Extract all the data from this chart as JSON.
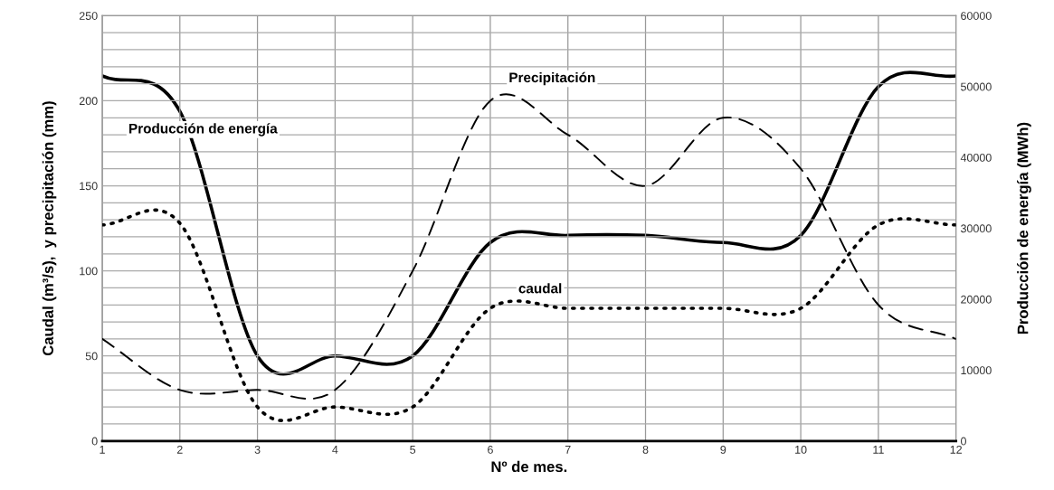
{
  "chart_data": {
    "type": "line",
    "xlabel": "Nº de mes.",
    "ylabel": "Caudal (m³/s),  y precipitación (mm)",
    "y2label": "Producción de energía (MWh)",
    "x": [
      1,
      2,
      3,
      4,
      5,
      6,
      7,
      8,
      9,
      10,
      11,
      12
    ],
    "xlim": [
      1,
      12
    ],
    "xticks": [
      1,
      2,
      3,
      4,
      5,
      6,
      7,
      8,
      9,
      10,
      11,
      12
    ],
    "ylim": [
      0,
      250
    ],
    "yticks": [
      0,
      {
        "value": 10,
        "label": null
      },
      {
        "value": 20,
        "label": null
      },
      {
        "value": 30,
        "label": null
      },
      {
        "value": 40,
        "label": null
      },
      50,
      {
        "value": 60,
        "label": null
      },
      {
        "value": 70,
        "label": null
      },
      {
        "value": 80,
        "label": null
      },
      {
        "value": 90,
        "label": null
      },
      100,
      {
        "value": 110,
        "label": null
      },
      {
        "value": 120,
        "label": null
      },
      {
        "value": 130,
        "label": null
      },
      {
        "value": 140,
        "label": null
      },
      150,
      {
        "value": 160,
        "label": null
      },
      {
        "value": 170,
        "label": null
      },
      {
        "value": 180,
        "label": null
      },
      {
        "value": 190,
        "label": null
      },
      200,
      {
        "value": 210,
        "label": null
      },
      {
        "value": 220,
        "label": null
      },
      {
        "value": 230,
        "label": null
      },
      {
        "value": 240,
        "label": null
      },
      250
    ],
    "y2lim": [
      0,
      60000
    ],
    "y2ticks": [
      0,
      10000,
      20000,
      30000,
      40000,
      50000,
      60000
    ],
    "grid": true,
    "legend": false,
    "marker": "none",
    "series": [
      {
        "name": "Producción de energía",
        "color": "#000000",
        "line_style": "solid",
        "axis": "y2",
        "values": [
          51500,
          46500,
          12000,
          12000,
          12000,
          28000,
          29000,
          29000,
          28000,
          29000,
          50000,
          51500
        ]
      },
      {
        "name": "Precipitación",
        "color": "#000000",
        "line_style": "dashed",
        "values": [
          60,
          30,
          30,
          30,
          100,
          200,
          180,
          150,
          190,
          160,
          80,
          60
        ]
      },
      {
        "name": "caudal",
        "color": "#000000",
        "line_style": "dotted",
        "values": [
          127,
          128,
          20,
          20,
          20,
          78,
          78,
          78,
          78,
          78,
          127,
          127
        ]
      }
    ]
  }
}
